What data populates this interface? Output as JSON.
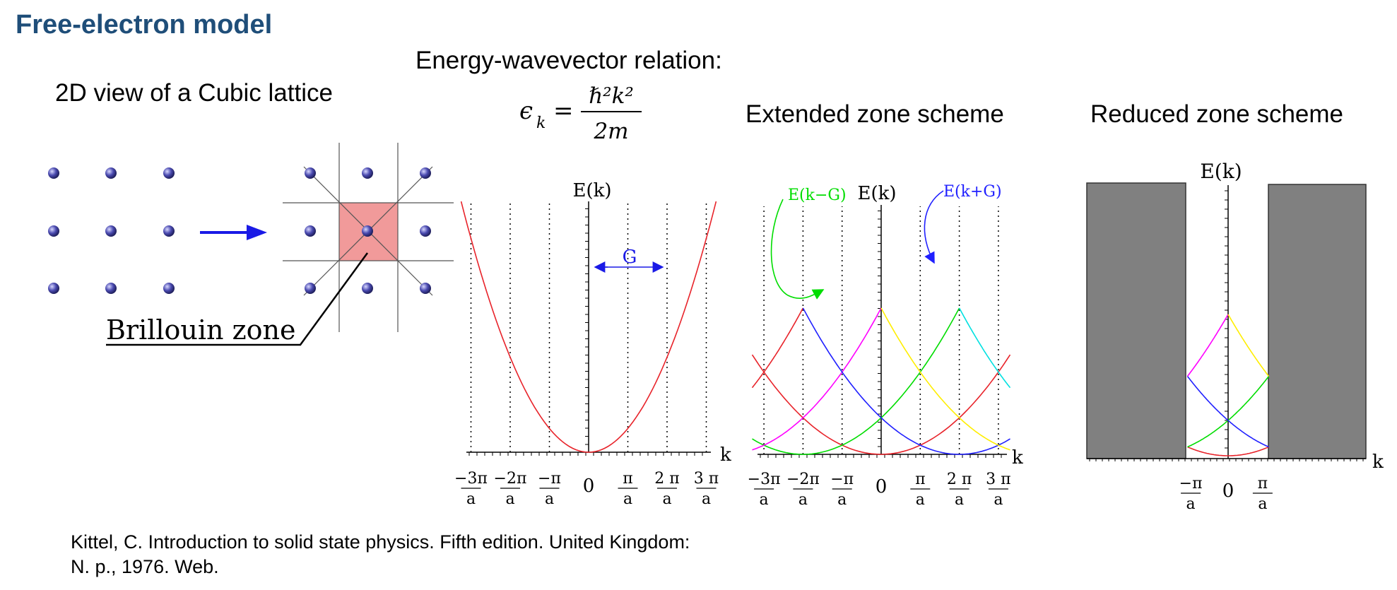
{
  "title": "Free-electron model",
  "lattice": {
    "heading": "2D view of a Cubic lattice",
    "zone_label": "Brillouin zone"
  },
  "relation": {
    "heading": "Energy-wavevector relation:",
    "lhs_symbol": "ϵ",
    "lhs_subscript": "k",
    "numerator": "ℏ²k²",
    "denominator": "2m"
  },
  "panels": {
    "free": {
      "y_label": "E(k)",
      "x_label": "k",
      "arrow_label": "G",
      "ticks": [
        {
          "num": "−3π",
          "den": "a"
        },
        {
          "num": "−2π",
          "den": "a"
        },
        {
          "num": "−π",
          "den": "a"
        },
        {
          "zero": "0"
        },
        {
          "num": "π",
          "den": "a"
        },
        {
          "num": "2 π",
          "den": "a"
        },
        {
          "num": "3 π",
          "den": "a"
        }
      ]
    },
    "extended": {
      "heading": "Extended zone scheme",
      "y_label": "E(k)",
      "x_label": "k",
      "left_label": "E(k−G)",
      "right_label": "E(k+G)",
      "ticks": [
        {
          "num": "−3π",
          "den": "a"
        },
        {
          "num": "−2π",
          "den": "a"
        },
        {
          "num": "−π",
          "den": "a"
        },
        {
          "zero": "0"
        },
        {
          "num": "π",
          "den": "a"
        },
        {
          "num": "2 π",
          "den": "a"
        },
        {
          "num": "3 π",
          "den": "a"
        }
      ]
    },
    "reduced": {
      "heading": "Reduced zone scheme",
      "y_label": "E(k)",
      "x_label": "k",
      "ticks": [
        {
          "num": "−π",
          "den": "a"
        },
        {
          "zero": "0"
        },
        {
          "num": "π",
          "den": "a"
        }
      ]
    }
  },
  "colors": {
    "title": "#1f4e79",
    "k": "#e8232a",
    "k_minus_G": "#00dd00",
    "k_minus_2G": "#ff00ff",
    "k_plus_G": "#2020ff",
    "k_plus_2G": "#ffee00",
    "k_plus_3G": "#00e0e0",
    "zone_fill": "#f19a9a",
    "atom": "#3a3aa0",
    "shade": "#808080",
    "arrow": "#1a1ae6"
  },
  "citation": {
    "line1": "Kittel, C. Introduction to solid state physics. Fifth edition. United Kingdom:",
    "line2": "N. p., 1976. Web."
  }
}
